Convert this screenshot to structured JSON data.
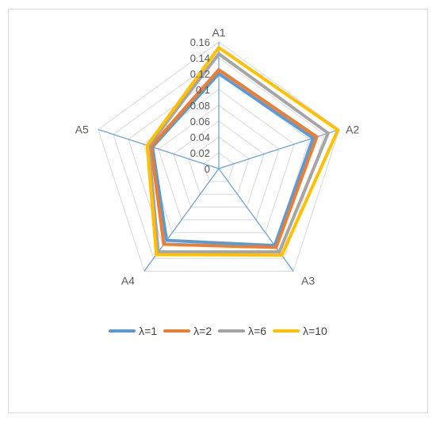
{
  "chart_data": {
    "type": "radar",
    "categories": [
      "A1",
      "A2",
      "A3",
      "A4",
      "A5"
    ],
    "rlim": [
      0,
      0.16
    ],
    "ticks": [
      "0",
      "0.02",
      "0.04",
      "0.06",
      "0.08",
      "0.1",
      "0.12",
      "0.14",
      "0.16"
    ],
    "grid": true,
    "legend_position": "bottom",
    "series": [
      {
        "name": "λ=1",
        "color": "#5b9bd5",
        "values": [
          0.12,
          0.125,
          0.12,
          0.112,
          0.088
        ]
      },
      {
        "name": "λ=2",
        "color": "#ed7d31",
        "values": [
          0.125,
          0.13,
          0.123,
          0.118,
          0.09
        ]
      },
      {
        "name": "λ=6",
        "color": "#a5a5a5",
        "values": [
          0.145,
          0.145,
          0.13,
          0.13,
          0.093
        ]
      },
      {
        "name": "λ=10",
        "color": "#ffc000",
        "values": [
          0.153,
          0.158,
          0.135,
          0.134,
          0.095
        ]
      }
    ]
  }
}
